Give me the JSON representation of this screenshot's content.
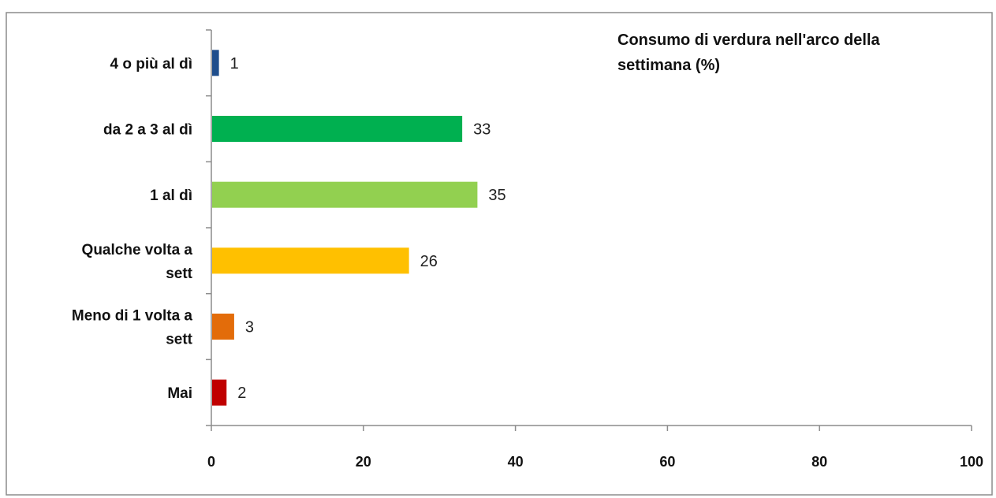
{
  "chart_data": {
    "type": "bar",
    "orientation": "horizontal",
    "title_lines": [
      "Consumo di verdura nell'arco della",
      "settimana (%)"
    ],
    "categories": [
      [
        "4 o più al dì"
      ],
      [
        "da 2 a 3 al dì"
      ],
      [
        "1 al dì"
      ],
      [
        "Qualche volta a",
        "sett"
      ],
      [
        "Meno di 1 volta a",
        "sett"
      ],
      [
        "Mai"
      ]
    ],
    "values": [
      1,
      33,
      35,
      26,
      3,
      2
    ],
    "value_labels": [
      "1",
      "33",
      "35",
      "26",
      "3",
      "2"
    ],
    "colors": [
      "#1F4E8C",
      "#00B050",
      "#92D050",
      "#FFC000",
      "#E36C0A",
      "#C00000"
    ],
    "xlim": [
      0,
      100
    ],
    "xticks": [
      0,
      20,
      40,
      60,
      80,
      100
    ],
    "xtick_labels": [
      "0",
      "20",
      "40",
      "60",
      "80",
      "100"
    ],
    "grid": false,
    "legend": "none"
  }
}
